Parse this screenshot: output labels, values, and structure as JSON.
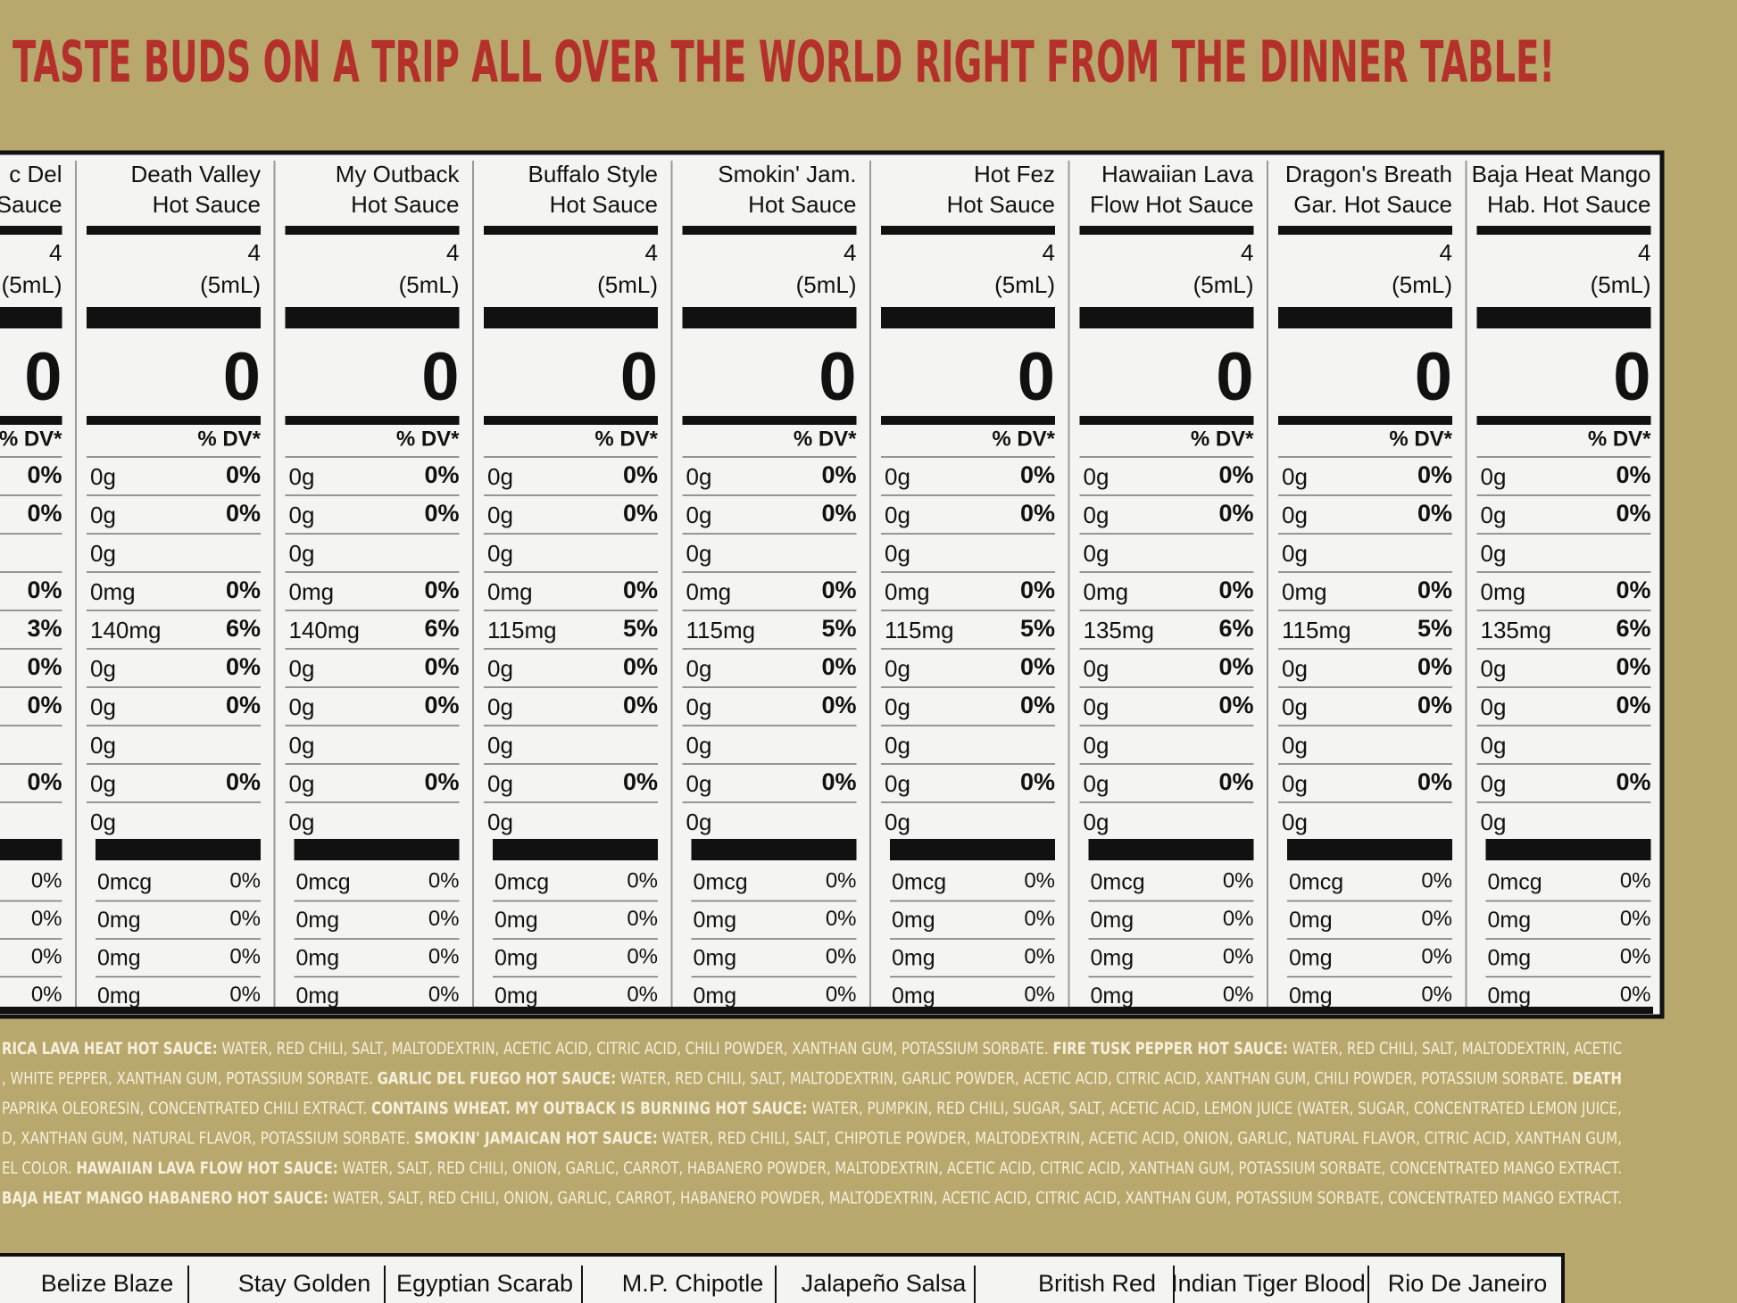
{
  "header": {
    "title": "TASTE BUDS ON A TRIP ALL OVER THE WORLD RIGHT FROM THE DINNER TABLE!"
  },
  "columns": [
    {
      "name": [
        "c Del",
        "Sauce"
      ],
      "serving": "4",
      "volume": "(5mL)",
      "calories": "0",
      "dv_header": "% DV*",
      "rows": [
        {
          "dv": "0%"
        },
        {
          "dv": "0%"
        },
        null,
        {
          "dv": "0%"
        },
        {
          "dv": "3%"
        },
        {
          "dv": "0%"
        },
        {
          "dv": "0%"
        },
        null,
        {
          "dv": "0%"
        },
        null
      ],
      "vitamins": [
        {
          "dv": "0%"
        },
        {
          "dv": "0%"
        },
        {
          "dv": "0%"
        },
        {
          "dv": "0%"
        }
      ]
    },
    {
      "name": [
        "Death Valley",
        "Hot Sauce"
      ],
      "serving": "4",
      "volume": "(5mL)",
      "calories": "0",
      "dv_header": "% DV*",
      "rows": [
        {
          "amount": "0g",
          "dv": "0%"
        },
        {
          "amount": "0g",
          "dv": "0%"
        },
        {
          "amount": "0g"
        },
        {
          "amount": "0mg",
          "dv": "0%"
        },
        {
          "amount": "140mg",
          "dv": "6%"
        },
        {
          "amount": "0g",
          "dv": "0%"
        },
        {
          "amount": "0g",
          "dv": "0%"
        },
        {
          "amount": "0g"
        },
        {
          "amount": "0g",
          "dv": "0%"
        },
        {
          "amount": "0g"
        }
      ],
      "vitamins": [
        {
          "amount": "0mcg",
          "dv": "0%"
        },
        {
          "amount": "0mg",
          "dv": "0%"
        },
        {
          "amount": "0mg",
          "dv": "0%"
        },
        {
          "amount": "0mg",
          "dv": "0%"
        }
      ]
    },
    {
      "name": [
        "My Outback",
        "Hot Sauce"
      ],
      "serving": "4",
      "volume": "(5mL)",
      "calories": "0",
      "dv_header": "% DV*",
      "rows": [
        {
          "amount": "0g",
          "dv": "0%"
        },
        {
          "amount": "0g",
          "dv": "0%"
        },
        {
          "amount": "0g"
        },
        {
          "amount": "0mg",
          "dv": "0%"
        },
        {
          "amount": "140mg",
          "dv": "6%"
        },
        {
          "amount": "0g",
          "dv": "0%"
        },
        {
          "amount": "0g",
          "dv": "0%"
        },
        {
          "amount": "0g"
        },
        {
          "amount": "0g",
          "dv": "0%"
        },
        {
          "amount": "0g"
        }
      ],
      "vitamins": [
        {
          "amount": "0mcg",
          "dv": "0%"
        },
        {
          "amount": "0mg",
          "dv": "0%"
        },
        {
          "amount": "0mg",
          "dv": "0%"
        },
        {
          "amount": "0mg",
          "dv": "0%"
        }
      ]
    },
    {
      "name": [
        "Buffalo Style",
        "Hot Sauce"
      ],
      "serving": "4",
      "volume": "(5mL)",
      "calories": "0",
      "dv_header": "% DV*",
      "rows": [
        {
          "amount": "0g",
          "dv": "0%"
        },
        {
          "amount": "0g",
          "dv": "0%"
        },
        {
          "amount": "0g"
        },
        {
          "amount": "0mg",
          "dv": "0%"
        },
        {
          "amount": "115mg",
          "dv": "5%"
        },
        {
          "amount": "0g",
          "dv": "0%"
        },
        {
          "amount": "0g",
          "dv": "0%"
        },
        {
          "amount": "0g"
        },
        {
          "amount": "0g",
          "dv": "0%"
        },
        {
          "amount": "0g"
        }
      ],
      "vitamins": [
        {
          "amount": "0mcg",
          "dv": "0%"
        },
        {
          "amount": "0mg",
          "dv": "0%"
        },
        {
          "amount": "0mg",
          "dv": "0%"
        },
        {
          "amount": "0mg",
          "dv": "0%"
        }
      ]
    },
    {
      "name": [
        "Smokin' Jam.",
        "Hot Sauce"
      ],
      "serving": "4",
      "volume": "(5mL)",
      "calories": "0",
      "dv_header": "% DV*",
      "rows": [
        {
          "amount": "0g",
          "dv": "0%"
        },
        {
          "amount": "0g",
          "dv": "0%"
        },
        {
          "amount": "0g"
        },
        {
          "amount": "0mg",
          "dv": "0%"
        },
        {
          "amount": "115mg",
          "dv": "5%"
        },
        {
          "amount": "0g",
          "dv": "0%"
        },
        {
          "amount": "0g",
          "dv": "0%"
        },
        {
          "amount": "0g"
        },
        {
          "amount": "0g",
          "dv": "0%"
        },
        {
          "amount": "0g"
        }
      ],
      "vitamins": [
        {
          "amount": "0mcg",
          "dv": "0%"
        },
        {
          "amount": "0mg",
          "dv": "0%"
        },
        {
          "amount": "0mg",
          "dv": "0%"
        },
        {
          "amount": "0mg",
          "dv": "0%"
        }
      ]
    },
    {
      "name": [
        "Hot Fez",
        "Hot Sauce"
      ],
      "serving": "4",
      "volume": "(5mL)",
      "calories": "0",
      "dv_header": "% DV*",
      "rows": [
        {
          "amount": "0g",
          "dv": "0%"
        },
        {
          "amount": "0g",
          "dv": "0%"
        },
        {
          "amount": "0g"
        },
        {
          "amount": "0mg",
          "dv": "0%"
        },
        {
          "amount": "115mg",
          "dv": "5%"
        },
        {
          "amount": "0g",
          "dv": "0%"
        },
        {
          "amount": "0g",
          "dv": "0%"
        },
        {
          "amount": "0g"
        },
        {
          "amount": "0g",
          "dv": "0%"
        },
        {
          "amount": "0g"
        }
      ],
      "vitamins": [
        {
          "amount": "0mcg",
          "dv": "0%"
        },
        {
          "amount": "0mg",
          "dv": "0%"
        },
        {
          "amount": "0mg",
          "dv": "0%"
        },
        {
          "amount": "0mg",
          "dv": "0%"
        }
      ]
    },
    {
      "name": [
        "Hawaiian Lava",
        "Flow Hot Sauce"
      ],
      "serving": "4",
      "volume": "(5mL)",
      "calories": "0",
      "dv_header": "% DV*",
      "rows": [
        {
          "amount": "0g",
          "dv": "0%"
        },
        {
          "amount": "0g",
          "dv": "0%"
        },
        {
          "amount": "0g"
        },
        {
          "amount": "0mg",
          "dv": "0%"
        },
        {
          "amount": "135mg",
          "dv": "6%"
        },
        {
          "amount": "0g",
          "dv": "0%"
        },
        {
          "amount": "0g",
          "dv": "0%"
        },
        {
          "amount": "0g"
        },
        {
          "amount": "0g",
          "dv": "0%"
        },
        {
          "amount": "0g"
        }
      ],
      "vitamins": [
        {
          "amount": "0mcg",
          "dv": "0%"
        },
        {
          "amount": "0mg",
          "dv": "0%"
        },
        {
          "amount": "0mg",
          "dv": "0%"
        },
        {
          "amount": "0mg",
          "dv": "0%"
        }
      ]
    },
    {
      "name": [
        "Dragon's Breath",
        "Gar. Hot Sauce"
      ],
      "serving": "4",
      "volume": "(5mL)",
      "calories": "0",
      "dv_header": "% DV*",
      "rows": [
        {
          "amount": "0g",
          "dv": "0%"
        },
        {
          "amount": "0g",
          "dv": "0%"
        },
        {
          "amount": "0g"
        },
        {
          "amount": "0mg",
          "dv": "0%"
        },
        {
          "amount": "115mg",
          "dv": "5%"
        },
        {
          "amount": "0g",
          "dv": "0%"
        },
        {
          "amount": "0g",
          "dv": "0%"
        },
        {
          "amount": "0g"
        },
        {
          "amount": "0g",
          "dv": "0%"
        },
        {
          "amount": "0g"
        }
      ],
      "vitamins": [
        {
          "amount": "0mcg",
          "dv": "0%"
        },
        {
          "amount": "0mg",
          "dv": "0%"
        },
        {
          "amount": "0mg",
          "dv": "0%"
        },
        {
          "amount": "0mg",
          "dv": "0%"
        }
      ]
    },
    {
      "name": [
        "Baja Heat Mango",
        "Hab. Hot Sauce"
      ],
      "serving": "4",
      "volume": "(5mL)",
      "calories": "0",
      "dv_header": "% DV*",
      "rows": [
        {
          "amount": "0g",
          "dv": "0%"
        },
        {
          "amount": "0g",
          "dv": "0%"
        },
        {
          "amount": "0g"
        },
        {
          "amount": "0mg",
          "dv": "0%"
        },
        {
          "amount": "135mg",
          "dv": "6%"
        },
        {
          "amount": "0g",
          "dv": "0%"
        },
        {
          "amount": "0g",
          "dv": "0%"
        },
        {
          "amount": "0g"
        },
        {
          "amount": "0g",
          "dv": "0%"
        },
        {
          "amount": "0g"
        }
      ],
      "vitamins": [
        {
          "amount": "0mcg",
          "dv": "0%"
        },
        {
          "amount": "0mg",
          "dv": "0%"
        },
        {
          "amount": "0mg",
          "dv": "0%"
        },
        {
          "amount": "0mg",
          "dv": "0%"
        }
      ]
    }
  ],
  "ingredients": [
    [
      {
        "bold": "RICA LAVA HEAT HOT SAUCE:"
      },
      {
        "text": " WATER, RED CHILI, SALT, MALTODEXTRIN, ACETIC ACID, CITRIC ACID, CHILI POWDER, XANTHAN GUM, POTASSIUM SORBATE. "
      },
      {
        "bold": "FIRE TUSK PEPPER HOT SAUCE:"
      },
      {
        "text": " WATER, RED CHILI, SALT, MALTODEXTRIN, ACETIC"
      }
    ],
    [
      {
        "text": ", WHITE PEPPER, XANTHAN GUM, POTASSIUM SORBATE. "
      },
      {
        "bold": "GARLIC DEL FUEGO HOT SAUCE:"
      },
      {
        "text": " WATER, RED CHILI, SALT, MALTODEXTRIN, GARLIC POWDER, ACETIC ACID, CITRIC ACID, XANTHAN GUM, CHILI POWDER, POTASSIUM SORBATE. "
      },
      {
        "bold": "DEATH"
      }
    ],
    [
      {
        "text": " PAPRIKA OLEORESIN, CONCENTRATED CHILI EXTRACT. "
      },
      {
        "bold": "CONTAINS WHEAT. MY OUTBACK IS BURNING HOT SAUCE:"
      },
      {
        "text": " WATER, PUMPKIN, RED CHILI, SUGAR, SALT, ACETIC ACID, LEMON JUICE (WATER, SUGAR, CONCENTRATED LEMON JUICE,"
      }
    ],
    [
      {
        "text": "D, XANTHAN GUM, NATURAL FLAVOR, POTASSIUM SORBATE. "
      },
      {
        "bold": "SMOKIN' JAMAICAN HOT SAUCE:"
      },
      {
        "text": " WATER, RED CHILI, SALT, CHIPOTLE POWDER, MALTODEXTRIN, ACETIC ACID, ONION, GARLIC, NATURAL FLAVOR, CITRIC ACID, XANTHAN GUM,"
      }
    ],
    [
      {
        "text": "EL COLOR. "
      },
      {
        "bold": "HAWAIIAN LAVA FLOW HOT SAUCE:"
      },
      {
        "text": " WATER, SALT, RED CHILI, ONION, GARLIC, CARROT, HABANERO POWDER, MALTODEXTRIN, ACETIC ACID, CITRIC ACID, XANTHAN GUM, POTASSIUM SORBATE, CONCENTRATED MANGO EXTRACT."
      }
    ],
    [
      {
        "bold": "BAJA HEAT MANGO HABANERO HOT SAUCE:"
      },
      {
        "text": " WATER, SALT, RED CHILI, ONION, GARLIC, CARROT, HABANERO POWDER, MALTODEXTRIN, ACETIC ACID, CITRIC ACID, XANTHAN GUM, POTASSIUM SORBATE, CONCENTRATED MANGO EXTRACT."
      }
    ]
  ],
  "bottom_labels": [
    "Belize Blaze",
    "Stay Golden",
    "Egyptian Scarab",
    "M.P. Chipotle",
    "Jalapeño Salsa",
    "British Red",
    "Indian Tiger Blood",
    "Rio De Janeiro"
  ]
}
